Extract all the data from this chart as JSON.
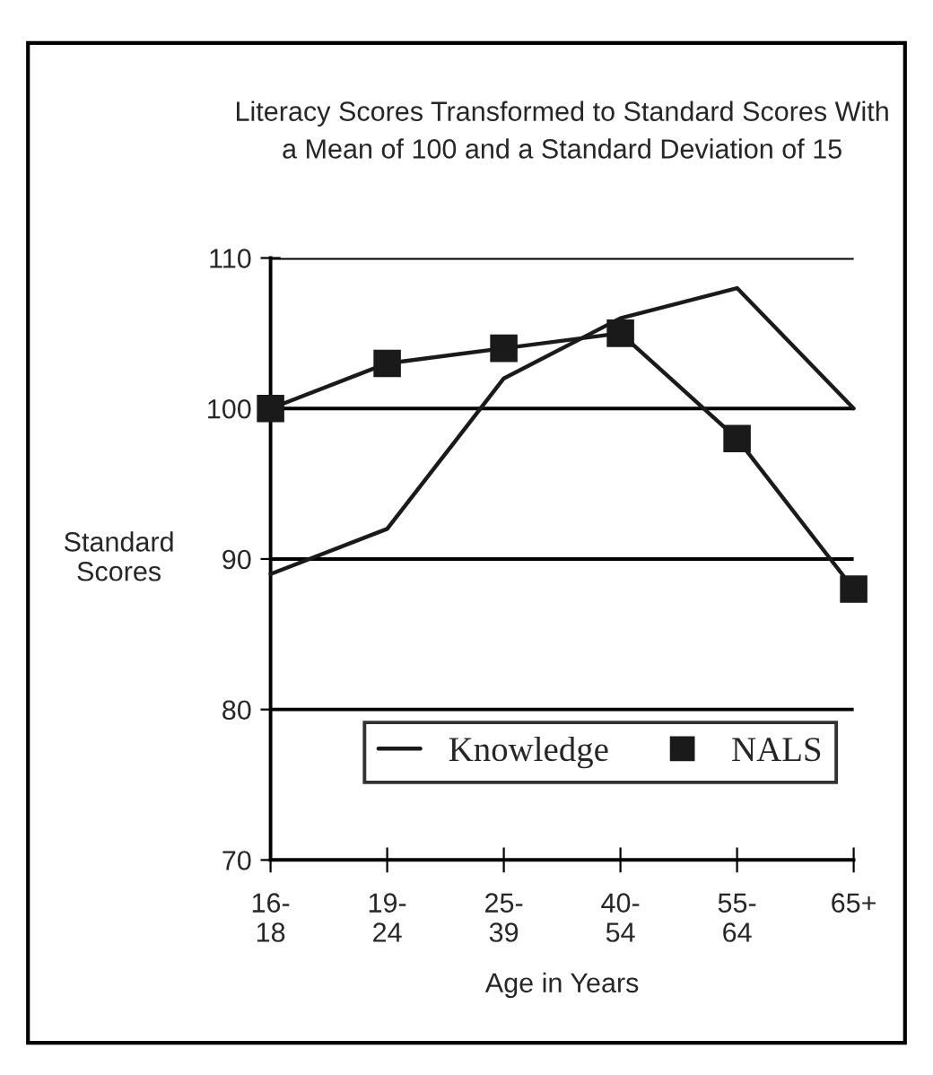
{
  "chart_data": {
    "type": "line",
    "title": "Literacy Scores Transformed to Standard Scores With\na Mean of 100 and a Standard Deviation of 15",
    "xlabel": "Age in Years",
    "ylabel": "Standard\nScores",
    "categories": [
      "16-\n18",
      "19-\n24",
      "25-\n39",
      "40-\n54",
      "55-\n64",
      "65+"
    ],
    "series": [
      {
        "name": "Knowledge",
        "color": "#1a1a1a",
        "marker": "none",
        "values": [
          89,
          92,
          102,
          106,
          108,
          100
        ]
      },
      {
        "name": "NALS",
        "color": "#1a1a1a",
        "marker": "square",
        "values": [
          100,
          103,
          104,
          105,
          98,
          88
        ]
      }
    ],
    "ylim": [
      70,
      110
    ],
    "yticks": [
      70,
      80,
      90,
      100,
      110
    ],
    "grid": "y",
    "legend": "bottom right",
    "line_style": "solid"
  }
}
